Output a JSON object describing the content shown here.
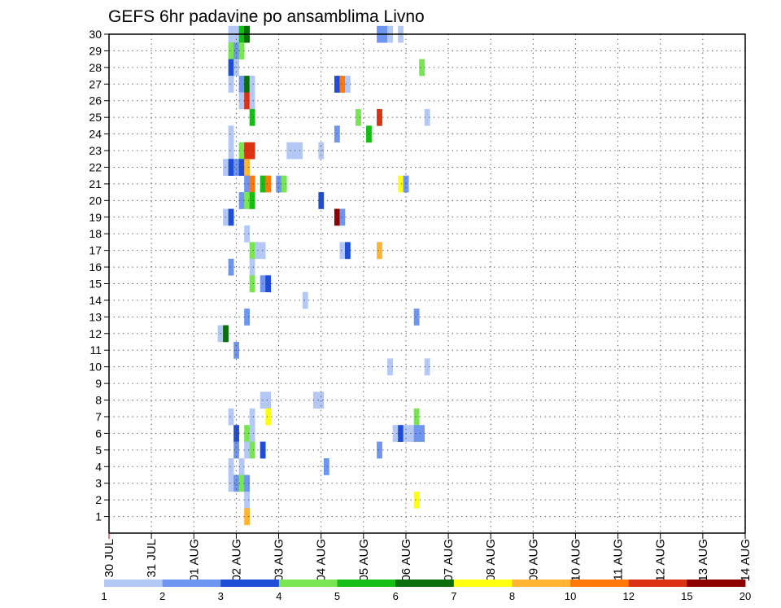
{
  "chart_data": {
    "type": "heatmap",
    "title": "GEFS 6hr padavine po ansamblima Livno",
    "x_tick_labels": [
      "30 JUL",
      "31 JUL",
      "01 AUG",
      "02 AUG",
      "03 AUG",
      "04 AUG",
      "05 AUG",
      "06 AUG",
      "07 AUG",
      "08 AUG",
      "09 AUG",
      "10 AUG",
      "11 AUG",
      "12 AUG",
      "13 AUG",
      "14 AUG"
    ],
    "x_unit": "6-hour steps from 30 JUL 00Z",
    "y_tick_labels": [
      "1",
      "2",
      "3",
      "4",
      "5",
      "6",
      "7",
      "8",
      "9",
      "10",
      "11",
      "12",
      "13",
      "14",
      "15",
      "16",
      "17",
      "18",
      "19",
      "20",
      "21",
      "22",
      "23",
      "24",
      "25",
      "26",
      "27",
      "28",
      "29",
      "30"
    ],
    "xlim": [
      0,
      60
    ],
    "ylim": [
      0,
      30
    ],
    "grid": true,
    "colorbar": {
      "labels": [
        "1",
        "2",
        "3",
        "4",
        "5",
        "6",
        "7",
        "8",
        "10",
        "12",
        "15",
        "20"
      ],
      "colors": [
        "#b4c8f5",
        "#6e96f0",
        "#1e4ed8",
        "#78e650",
        "#14be14",
        "#0a6e0a",
        "#ffff14",
        "#ffb432",
        "#ff780a",
        "#dc3214",
        "#8c0000"
      ]
    },
    "cells": [
      [
        11.5,
        30,
        0
      ],
      [
        12,
        30,
        0
      ],
      [
        12.5,
        30,
        4
      ],
      [
        13,
        30,
        5
      ],
      [
        25.5,
        30,
        1
      ],
      [
        26,
        30,
        1
      ],
      [
        26.5,
        30,
        0
      ],
      [
        27.5,
        30,
        0
      ],
      [
        11.5,
        29,
        3
      ],
      [
        12,
        29,
        1
      ],
      [
        12.5,
        29,
        3
      ],
      [
        11.5,
        28,
        2
      ],
      [
        12,
        28,
        0
      ],
      [
        29.5,
        28,
        3
      ],
      [
        11.5,
        27,
        0
      ],
      [
        12.5,
        27,
        1
      ],
      [
        13,
        27,
        5
      ],
      [
        13.5,
        27,
        0
      ],
      [
        21.5,
        27,
        2
      ],
      [
        22,
        27,
        8
      ],
      [
        22.5,
        27,
        0
      ],
      [
        12.5,
        26,
        0
      ],
      [
        13,
        26,
        9
      ],
      [
        13.5,
        26,
        0
      ],
      [
        13.5,
        25,
        4
      ],
      [
        23.5,
        25,
        3
      ],
      [
        25.5,
        25,
        9
      ],
      [
        30,
        25,
        0
      ],
      [
        11.5,
        24,
        0
      ],
      [
        21.5,
        24,
        1
      ],
      [
        24.5,
        24,
        4
      ],
      [
        11.5,
        23,
        0
      ],
      [
        12.5,
        23,
        3
      ],
      [
        13,
        23,
        9
      ],
      [
        13.5,
        23,
        9
      ],
      [
        17,
        23,
        0
      ],
      [
        17.5,
        23,
        0
      ],
      [
        18,
        23,
        0
      ],
      [
        20,
        23,
        0
      ],
      [
        11,
        22,
        0
      ],
      [
        11.5,
        22,
        2
      ],
      [
        12,
        22,
        1
      ],
      [
        12.5,
        22,
        2
      ],
      [
        13,
        22,
        7
      ],
      [
        13,
        21,
        1
      ],
      [
        13.5,
        21,
        8
      ],
      [
        14.5,
        21,
        4
      ],
      [
        15,
        21,
        8
      ],
      [
        16,
        21,
        1
      ],
      [
        16.5,
        21,
        3
      ],
      [
        27.5,
        21,
        6
      ],
      [
        28,
        21,
        1
      ],
      [
        12.5,
        20,
        1
      ],
      [
        13,
        20,
        3
      ],
      [
        13.5,
        20,
        4
      ],
      [
        20,
        20,
        2
      ],
      [
        11,
        19,
        0
      ],
      [
        11.5,
        19,
        2
      ],
      [
        21.5,
        19,
        10
      ],
      [
        22,
        19,
        1
      ],
      [
        13,
        18,
        0
      ],
      [
        13.5,
        17,
        3
      ],
      [
        14,
        17,
        0
      ],
      [
        14.5,
        17,
        0
      ],
      [
        22,
        17,
        0
      ],
      [
        22.5,
        17,
        2
      ],
      [
        25.5,
        17,
        7
      ],
      [
        11.5,
        16,
        1
      ],
      [
        13.5,
        16,
        0
      ],
      [
        13.5,
        15,
        3
      ],
      [
        14.5,
        15,
        1
      ],
      [
        15,
        15,
        2
      ],
      [
        18.5,
        14,
        0
      ],
      [
        13,
        13,
        1
      ],
      [
        29,
        13,
        1
      ],
      [
        10.5,
        12,
        0
      ],
      [
        11,
        12,
        5
      ],
      [
        12,
        11,
        1
      ],
      [
        26.5,
        10,
        0
      ],
      [
        30,
        10,
        0
      ],
      [
        14.5,
        8,
        0
      ],
      [
        15,
        8,
        0
      ],
      [
        19.5,
        8,
        0
      ],
      [
        20,
        8,
        0
      ],
      [
        11.5,
        7,
        0
      ],
      [
        13.5,
        7,
        0
      ],
      [
        15,
        7,
        6
      ],
      [
        29,
        7,
        3
      ],
      [
        12,
        6,
        2
      ],
      [
        13,
        6,
        3
      ],
      [
        13.5,
        6,
        0
      ],
      [
        27,
        6,
        0
      ],
      [
        27.5,
        6,
        2
      ],
      [
        28,
        6,
        0
      ],
      [
        28.5,
        6,
        0
      ],
      [
        29,
        6,
        1
      ],
      [
        29.5,
        6,
        1
      ],
      [
        12,
        5,
        1
      ],
      [
        13,
        5,
        0
      ],
      [
        13.5,
        5,
        3
      ],
      [
        14.5,
        5,
        2
      ],
      [
        25.5,
        5,
        1
      ],
      [
        11.5,
        4,
        0
      ],
      [
        12.5,
        4,
        0
      ],
      [
        20.5,
        4,
        1
      ],
      [
        11.5,
        3,
        0
      ],
      [
        12,
        3,
        1
      ],
      [
        12.5,
        3,
        3
      ],
      [
        13,
        3,
        1
      ],
      [
        13,
        2,
        0
      ],
      [
        29,
        2,
        6
      ],
      [
        13,
        1,
        7
      ]
    ]
  }
}
